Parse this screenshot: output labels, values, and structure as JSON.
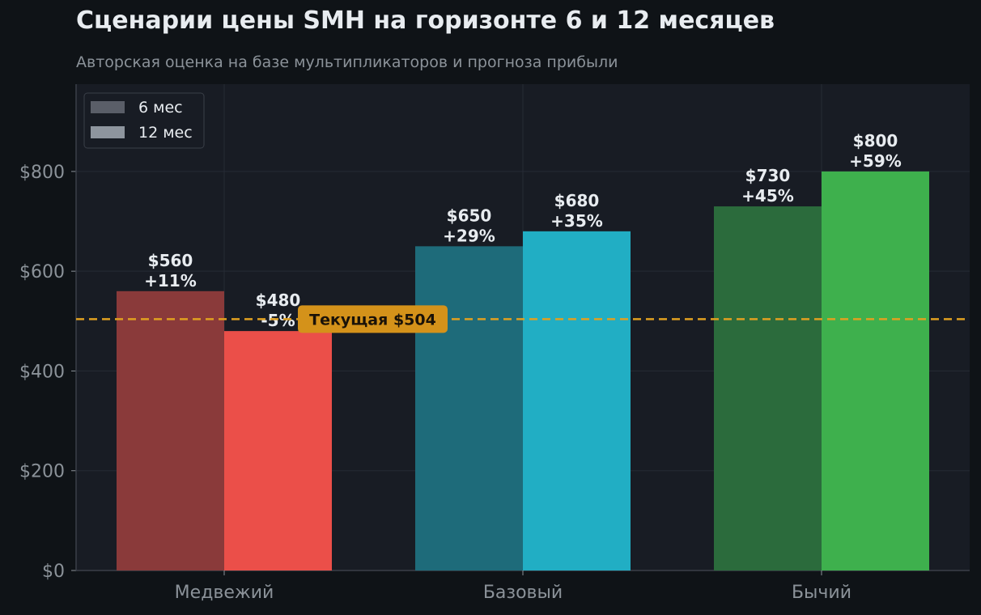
{
  "title": "Сценарии цены SMH на горизонте 6 и 12 месяцев",
  "subtitle": "Авторская оценка на базе мультипликаторов и прогноза прибыли",
  "chart_data": {
    "type": "bar",
    "categories": [
      "Медвежий",
      "Базовый",
      "Бычий"
    ],
    "series": [
      {
        "name": "6 мес",
        "values": [
          560,
          650,
          730
        ],
        "labels": [
          "+11%",
          "+29%",
          "+45%"
        ],
        "colors": [
          "#8a3a3a",
          "#1e6b7a",
          "#2b6b3c"
        ]
      },
      {
        "name": "12 мес",
        "values": [
          480,
          680,
          800
        ],
        "labels": [
          "-5%",
          "+35%",
          "+59%"
        ],
        "colors": [
          "#eb4f49",
          "#21aec4",
          "#3eb04d"
        ]
      }
    ],
    "y_ticks": [
      0,
      200,
      400,
      600,
      800
    ],
    "y_tick_labels": [
      "$0",
      "$200",
      "$400",
      "$600",
      "$800"
    ],
    "ylim": [
      0,
      975
    ],
    "reference_line": {
      "value": 504,
      "label": "Текущая $504",
      "color": "#e0a020"
    },
    "legend": {
      "position": "top-left",
      "swatch_colors": [
        "#5a5e68",
        "#8e959e"
      ]
    },
    "grid": true,
    "value_prefix": "$"
  }
}
